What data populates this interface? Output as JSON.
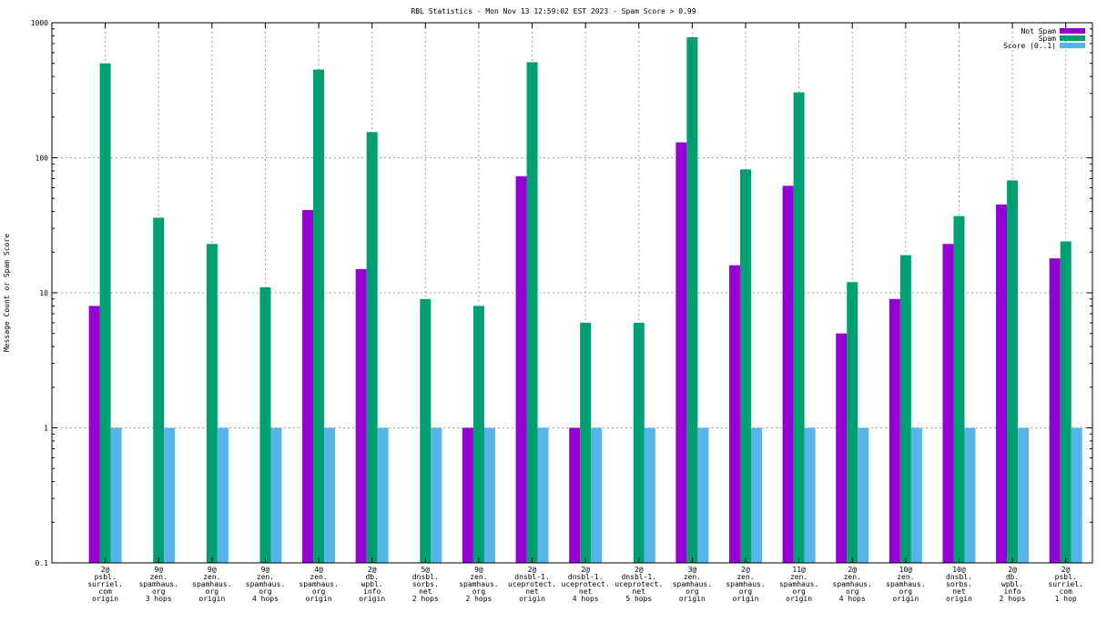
{
  "chart_data": {
    "type": "bar",
    "title": "RBL Statistics - Mon Nov 13 12:59:02 EST 2023 - Spam Score > 0.99",
    "ylabel": "Message Count or Spam Score",
    "xlabel": "",
    "yscale": "log",
    "ylim": [
      0.1,
      1000
    ],
    "yticks": [
      "0.1",
      "1",
      "10",
      "100",
      "1000"
    ],
    "grid": true,
    "legend_position": "top-right",
    "categories": [
      [
        "2@",
        "psbl.",
        "surriel.",
        "com",
        "origin"
      ],
      [
        "9@",
        "zen.",
        "spamhaus.",
        "org",
        "3 hops"
      ],
      [
        "9@",
        "zen.",
        "spamhaus.",
        "org",
        "origin"
      ],
      [
        "9@",
        "zen.",
        "spamhaus.",
        "org",
        "4 hops"
      ],
      [
        "4@",
        "zen.",
        "spamhaus.",
        "org",
        "origin"
      ],
      [
        "2@",
        "db.",
        "wpbl.",
        "info",
        "origin"
      ],
      [
        "5@",
        "dnsbl.",
        "sorbs.",
        "net",
        "2 hops"
      ],
      [
        "9@",
        "zen.",
        "spamhaus.",
        "org",
        "2 hops"
      ],
      [
        "2@",
        "dnsbl-1.",
        "uceprotect.",
        "net",
        "origin"
      ],
      [
        "2@",
        "dnsbl-1.",
        "uceprotect.",
        "net",
        "4 hops"
      ],
      [
        "2@",
        "dnsbl-1.",
        "uceprotect.",
        "net",
        "5 hops"
      ],
      [
        "3@",
        "zen.",
        "spamhaus.",
        "org",
        "origin"
      ],
      [
        "2@",
        "zen.",
        "spamhaus.",
        "org",
        "origin"
      ],
      [
        "11@",
        "zen.",
        "spamhaus.",
        "org",
        "origin"
      ],
      [
        "2@",
        "zen.",
        "spamhaus.",
        "org",
        "4 hops"
      ],
      [
        "10@",
        "zen.",
        "spamhaus.",
        "org",
        "origin"
      ],
      [
        "10@",
        "dnsbl.",
        "sorbs.",
        "net",
        "origin"
      ],
      [
        "2@",
        "db.",
        "wpbl.",
        "info",
        "2 hops"
      ],
      [
        "2@",
        "psbl.",
        "surriel.",
        "com",
        "1 hop"
      ]
    ],
    "series": [
      {
        "name": "Not Spam",
        "color": "#9400d3",
        "values": [
          8,
          0,
          0,
          0,
          41,
          15,
          0,
          1,
          73,
          1,
          0,
          130,
          16,
          62,
          5,
          9,
          23,
          45,
          18
        ]
      },
      {
        "name": "Spam",
        "color": "#009e73",
        "values": [
          500,
          36,
          23,
          11,
          450,
          155,
          9,
          8,
          510,
          6,
          6,
          780,
          82,
          305,
          12,
          19,
          37,
          68,
          24
        ]
      },
      {
        "name": "Score (0..1)",
        "color": "#56b4e9",
        "values": [
          1,
          1,
          1,
          1,
          1,
          1,
          1,
          1,
          1,
          1,
          1,
          1,
          1,
          1,
          1,
          1,
          1,
          1,
          1
        ]
      }
    ]
  }
}
